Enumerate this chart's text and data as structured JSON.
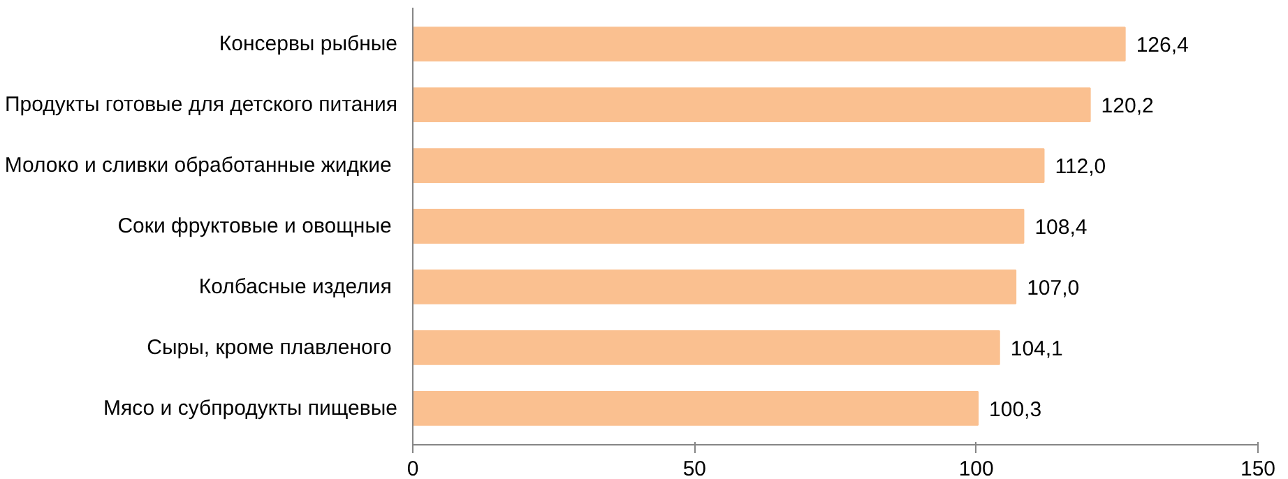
{
  "chart_data": {
    "type": "bar",
    "orientation": "horizontal",
    "categories": [
      "Консервы рыбные",
      "Продукты готовые для детского питания",
      "Молоко и сливки обработанные  жидкие",
      "Соки фруктовые  и овощные",
      "Колбасные  изделия",
      "Сыры,  кроме плавленого",
      "Мясо и субпродукты пищевые"
    ],
    "values": [
      126.4,
      120.2,
      112.0,
      108.4,
      107.0,
      104.1,
      100.3
    ],
    "value_labels": [
      "126,4",
      "120,2",
      "112,0",
      "108,4",
      "107,0",
      "104,1",
      "100,3"
    ],
    "color": "#fac090",
    "xlim": [
      0,
      150
    ],
    "xticks": [
      0,
      50,
      100,
      150
    ],
    "grid": false
  }
}
